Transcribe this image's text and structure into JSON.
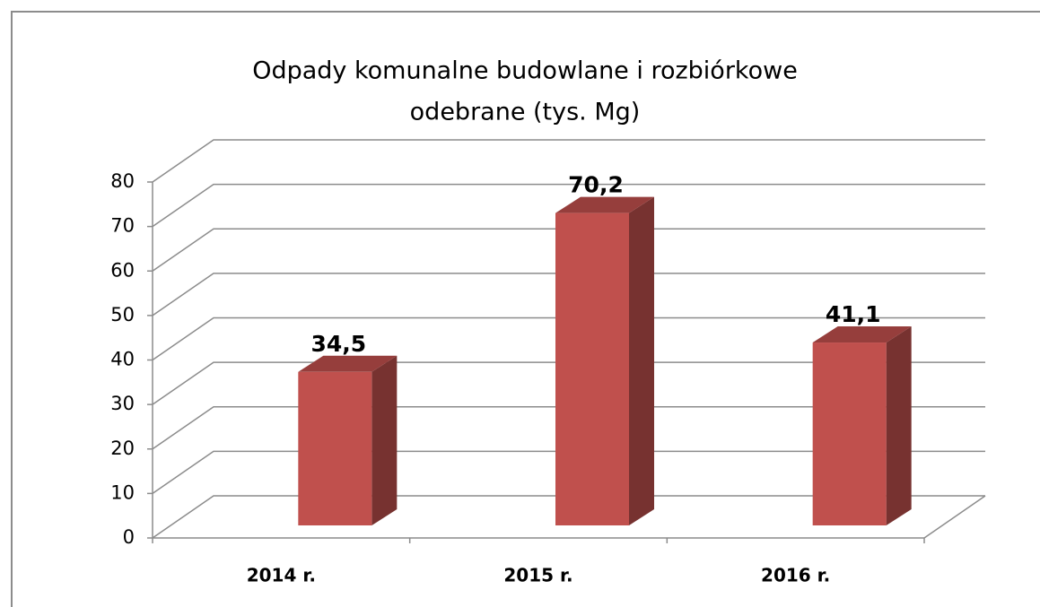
{
  "chart_data": {
    "type": "bar3d",
    "title": [
      "Odpady komunalne budowlane i rozbiórkowe",
      "odebrane (tys. Mg)"
    ],
    "categories": [
      "2014 r.",
      "2015 r.",
      "2016 r."
    ],
    "values": [
      34.5,
      70.2,
      41.1
    ],
    "value_labels": [
      "34,5",
      "70,2",
      "41,1"
    ],
    "color": "#c0504d",
    "ylim": [
      0,
      80
    ],
    "yticks": [
      0,
      10,
      20,
      30,
      40,
      50,
      60,
      70,
      80
    ],
    "grid": true
  }
}
